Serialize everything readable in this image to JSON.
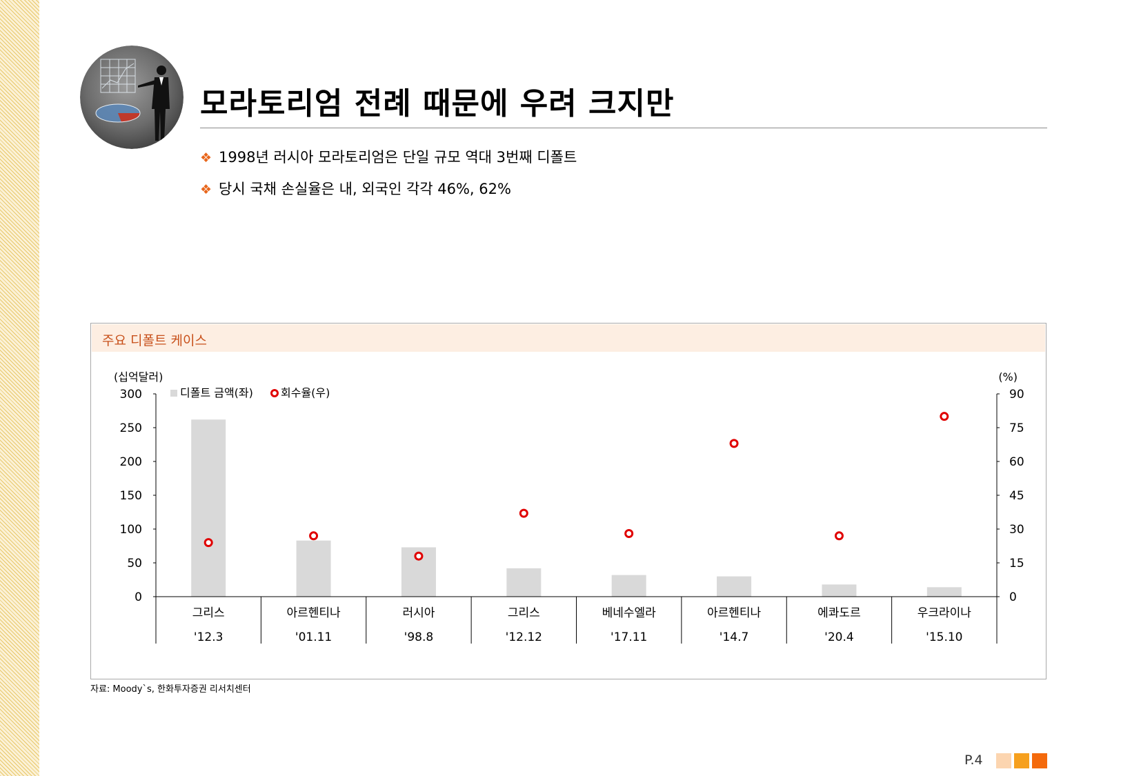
{
  "page": {
    "title": "모라토리엄 전례 때문에 우려 크지만",
    "bullets": [
      "1998년 러시아 모라토리엄은 단일 규모 역대 3번째 디폴트",
      "당시 국채 손실율은 내, 외국인 각각 46%, 62%"
    ],
    "bullet_mark": "❖",
    "source": "자료: Moody`s, 한화투자증권 리서치센터",
    "page_number": "P.4"
  },
  "chart_data": {
    "type": "bar",
    "title": "주요 디폴트 케이스",
    "y_left_unit": "(십억달러)",
    "y_right_unit": "(%)",
    "ylim_left": [
      0,
      300
    ],
    "ylim_right": [
      0,
      90
    ],
    "yticks_left": [
      0,
      50,
      100,
      150,
      200,
      250,
      300
    ],
    "yticks_right": [
      0,
      15,
      30,
      45,
      60,
      75,
      90
    ],
    "categories": [
      "그리스",
      "아르헨티나",
      "러시아",
      "그리스",
      "베네수엘라",
      "아르헨티나",
      "에콰도르",
      "우크라이나"
    ],
    "dates": [
      "'12.3",
      "'01.11",
      "'98.8",
      "'12.12",
      "'17.11",
      "'14.7",
      "'20.4",
      "'15.10"
    ],
    "series": [
      {
        "name": "디폴트 금액(좌)",
        "type": "bar",
        "axis": "left",
        "color": "#d9d9d9",
        "values": [
          262,
          83,
          73,
          42,
          32,
          30,
          18,
          14
        ]
      },
      {
        "name": "회수율(우)",
        "type": "scatter",
        "axis": "right",
        "color": "#e00000",
        "values": [
          24,
          27,
          18,
          37,
          28,
          68,
          27,
          80
        ]
      }
    ]
  }
}
